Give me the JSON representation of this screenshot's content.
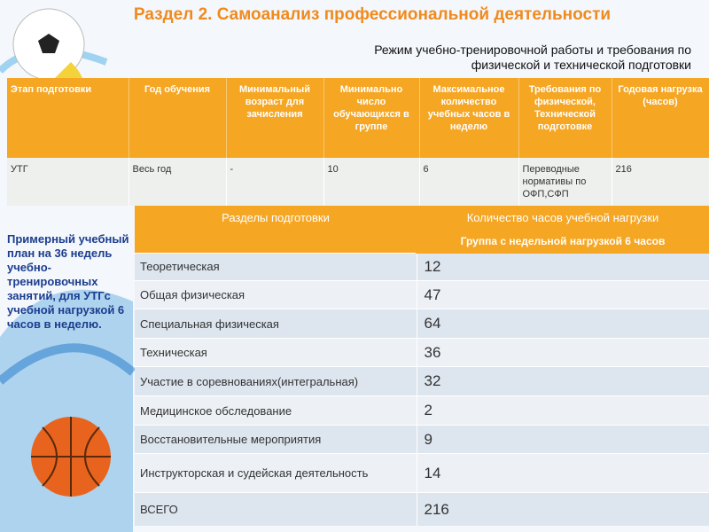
{
  "header": {
    "title": "Раздел 2. Самоанализ профессиональной деятельности",
    "subtitle": "Режим учебно-тренировочной работы и требования по физической и технической подготовки"
  },
  "table1": {
    "columns": [
      "Этап подготовки",
      "Год обучения",
      "Минимальный возраст для зачисления",
      "Минимально число обучающихся в группе",
      "Максимальное количество учебных часов в неделю",
      "Требования по физической, Технической подготовке",
      "Годовая нагрузка (часов)"
    ],
    "rows": [
      [
        "УТГ",
        "Весь год",
        "-",
        "10",
        "6",
        "Переводные нормативы по ОФП,СФП",
        "216"
      ]
    ]
  },
  "note": "Примерный учебный план на 36 недель учебно-тренировочных занятий, для УТГс учебной нагрузкой  6 часов в неделю.",
  "table2": {
    "columns": [
      "Разделы подготовки",
      "Количество часов учебной нагрузки"
    ],
    "group": "Группа с недельной нагрузкой 6 часов",
    "rows": [
      [
        "Теоретическая",
        "12"
      ],
      [
        "Общая физическая",
        "47"
      ],
      [
        "Специальная физическая",
        "64"
      ],
      [
        "Техническая",
        "36"
      ],
      [
        "Участие в соревнованиях(интегральная)",
        "32"
      ],
      [
        "Медицинское обследование",
        "2"
      ],
      [
        "Восстановительные мероприятия",
        "9"
      ],
      [
        "Инструкторская и судейская деятельность",
        "14"
      ],
      [
        "ВСЕГО",
        "216"
      ]
    ]
  }
}
